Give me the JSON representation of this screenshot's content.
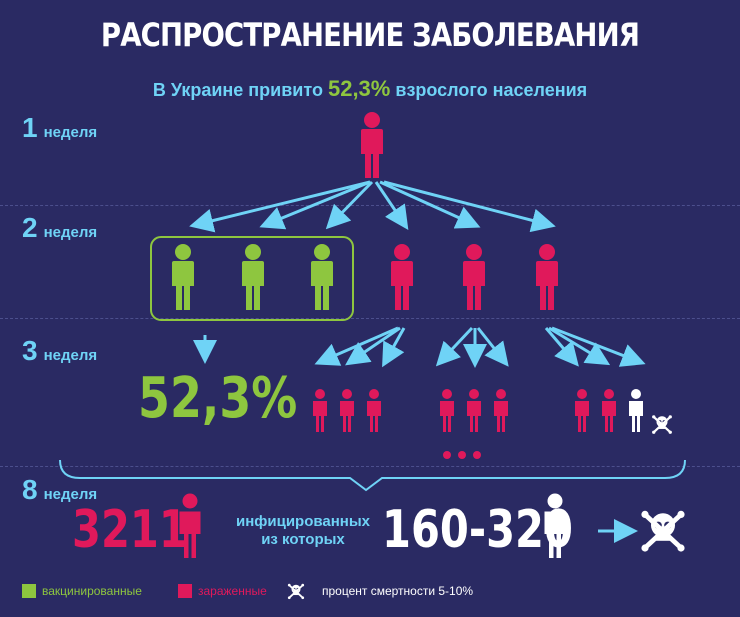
{
  "title": "РАСПРОСТРАНЕНИЕ ЗАБОЛЕВАНИЯ",
  "subtitle": {
    "prefix": "В Украине привито",
    "percent": "52,3%",
    "suffix": "взрослого населения"
  },
  "weeks": [
    {
      "num": "1",
      "label": "неделя"
    },
    {
      "num": "2",
      "label": "неделя"
    },
    {
      "num": "3",
      "label": "неделя"
    },
    {
      "num": "8",
      "label": "неделя"
    }
  ],
  "vaccinated_percent": "52,3%",
  "ellipsis": "• • •",
  "infected_count": "3211",
  "infected_text_line1": "инфицированных",
  "infected_text_line2": "из которых",
  "death_range": "160-320",
  "legend": {
    "vaccinated": "вакцинированные",
    "infected": "зараженные",
    "mortality": "процент смертности 5-10%"
  },
  "colors": {
    "background": "#2a2a63",
    "vaccinated": "#8ec63f",
    "infected": "#e0195b",
    "accent": "#6fd3f6",
    "dead": "#ffffff"
  }
}
